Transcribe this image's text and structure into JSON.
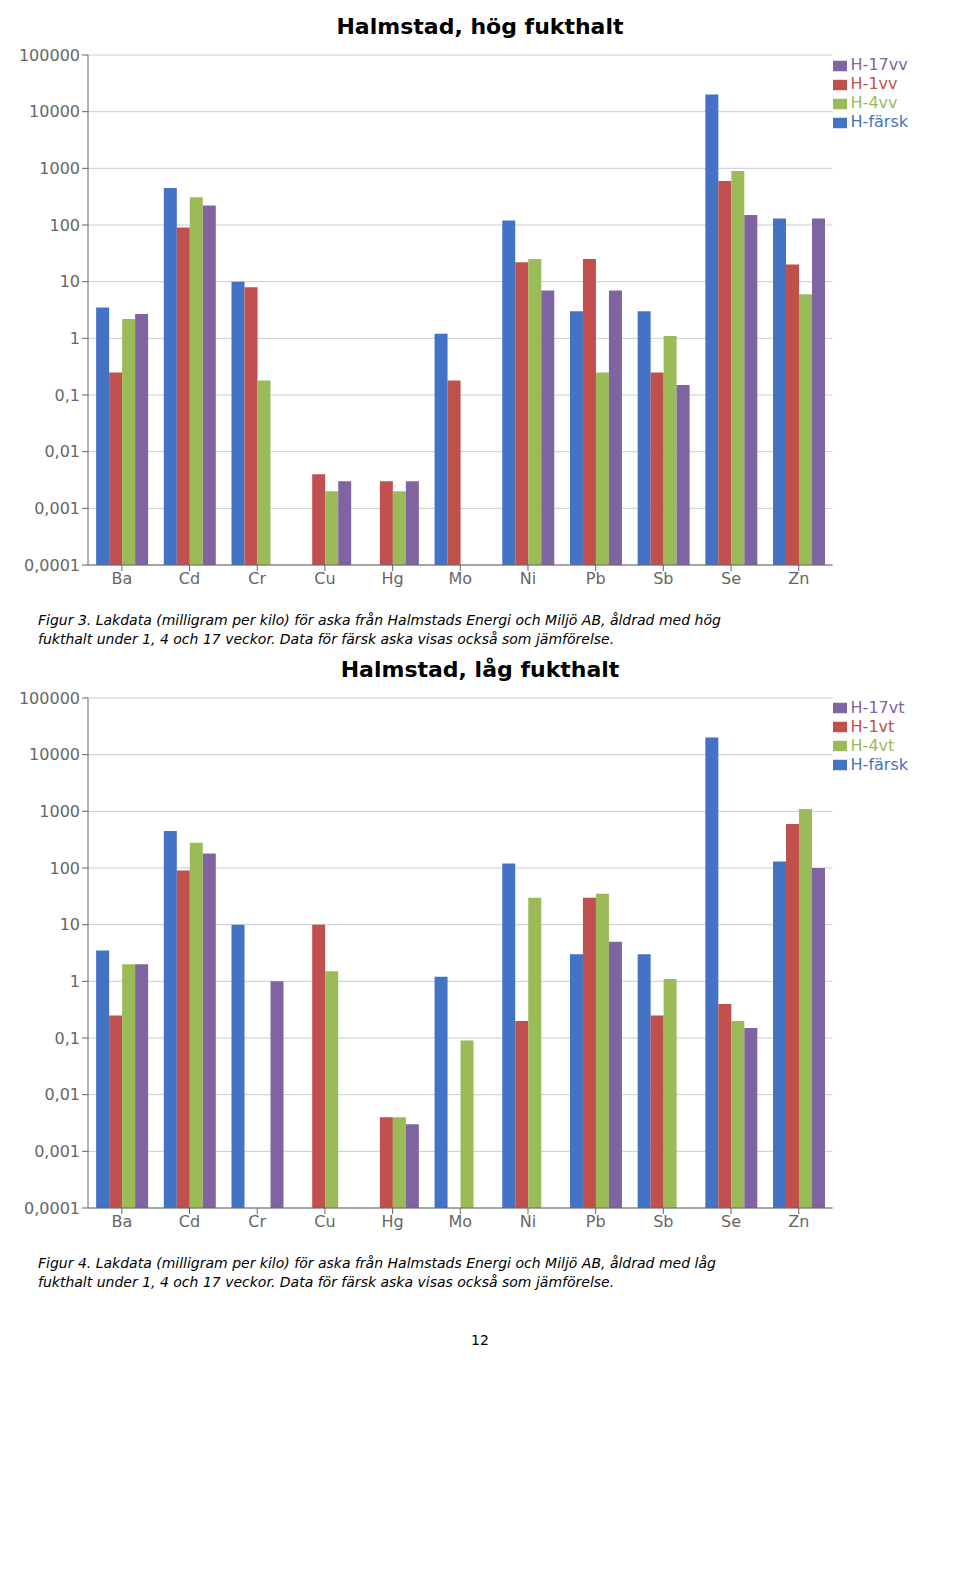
{
  "chart_data": [
    {
      "type": "bar",
      "title": "Halmstad, hög fukthalt",
      "caption": "Figur 3. Lakdata (milligram per kilo) för aska från Halmstads Energi och Miljö AB, åldrad med hög\nfukthalt under 1, 4 och 17 veckor. Data för färsk aska visas också som jämförelse.",
      "categories": [
        "Ba",
        "Cd",
        "Cr",
        "Cu",
        "Hg",
        "Mo",
        "Ni",
        "Pb",
        "Sb",
        "Se",
        "Zn"
      ],
      "series": [
        {
          "name": "H-färsk",
          "color": "#4472C4",
          "values": [
            3.5,
            450,
            10,
            0.0001,
            0.0001,
            1.2,
            120,
            3.0,
            3.0,
            20000,
            130
          ]
        },
        {
          "name": "H-1vv",
          "color": "#C0504D",
          "values": [
            0.25,
            90,
            8,
            0.004,
            0.003,
            0.18,
            22,
            25,
            0.25,
            600,
            20
          ]
        },
        {
          "name": "H-4vv",
          "color": "#9BBB59",
          "values": [
            2.2,
            310,
            0.18,
            0.002,
            0.002,
            0.0001,
            25,
            0.25,
            1.1,
            900,
            6
          ]
        },
        {
          "name": "H-17vv",
          "color": "#8064A2",
          "values": [
            2.7,
            220,
            0.0001,
            0.003,
            0.003,
            0.0001,
            7,
            7,
            0.15,
            150,
            130
          ]
        }
      ],
      "log": "y",
      "ylim": [
        0.0001,
        100000
      ],
      "yticks": [
        {
          "value": 0.0001,
          "label": "0,0001"
        },
        {
          "value": 0.001,
          "label": "0,001"
        },
        {
          "value": 0.01,
          "label": "0,01"
        },
        {
          "value": 0.1,
          "label": "0,1"
        },
        1,
        10,
        100,
        1000,
        10000,
        100000
      ],
      "grid": true,
      "legend": "upper right"
    },
    {
      "type": "bar",
      "title": "Halmstad, låg fukthalt",
      "caption": "Figur 4. Lakdata (milligram per kilo) för aska från Halmstads Energi och Miljö AB, åldrad med låg\nfukthalt under 1, 4 och 17 veckor. Data för färsk aska visas också som jämförelse.",
      "categories": [
        "Ba",
        "Cd",
        "Cr",
        "Cu",
        "Hg",
        "Mo",
        "Ni",
        "Pb",
        "Sb",
        "Se",
        "Zn"
      ],
      "series": [
        {
          "name": "H-färsk",
          "color": "#4472C4",
          "values": [
            3.5,
            450,
            10,
            0.0001,
            0.0001,
            1.2,
            120,
            3.0,
            3.0,
            20000,
            130
          ]
        },
        {
          "name": "H-1vt",
          "color": "#C0504D",
          "values": [
            0.25,
            90,
            0.0001,
            10,
            0.004,
            0.0001,
            0.2,
            30,
            0.25,
            0.4,
            600
          ]
        },
        {
          "name": "H-4vt",
          "color": "#9BBB59",
          "values": [
            2.0,
            280,
            0.0001,
            1.5,
            0.004,
            0.09,
            30,
            35,
            1.1,
            0.2,
            1100
          ]
        },
        {
          "name": "H-17vt",
          "color": "#8064A2",
          "values": [
            2.0,
            180,
            1.0,
            0.0001,
            0.003,
            0.0001,
            0.0001,
            5.0,
            0.0001,
            0.15,
            100
          ]
        }
      ],
      "log": "y",
      "ylim": [
        0.0001,
        100000
      ],
      "yticks": [
        {
          "value": 0.0001,
          "label": "0,0001"
        },
        {
          "value": 0.001,
          "label": "0,001"
        },
        {
          "value": 0.01,
          "label": "0,01"
        },
        {
          "value": 0.1,
          "label": "0,1"
        },
        1,
        10,
        100,
        1000,
        10000,
        100000
      ],
      "grid": true,
      "legend": "upper right"
    }
  ],
  "page_number": "12"
}
